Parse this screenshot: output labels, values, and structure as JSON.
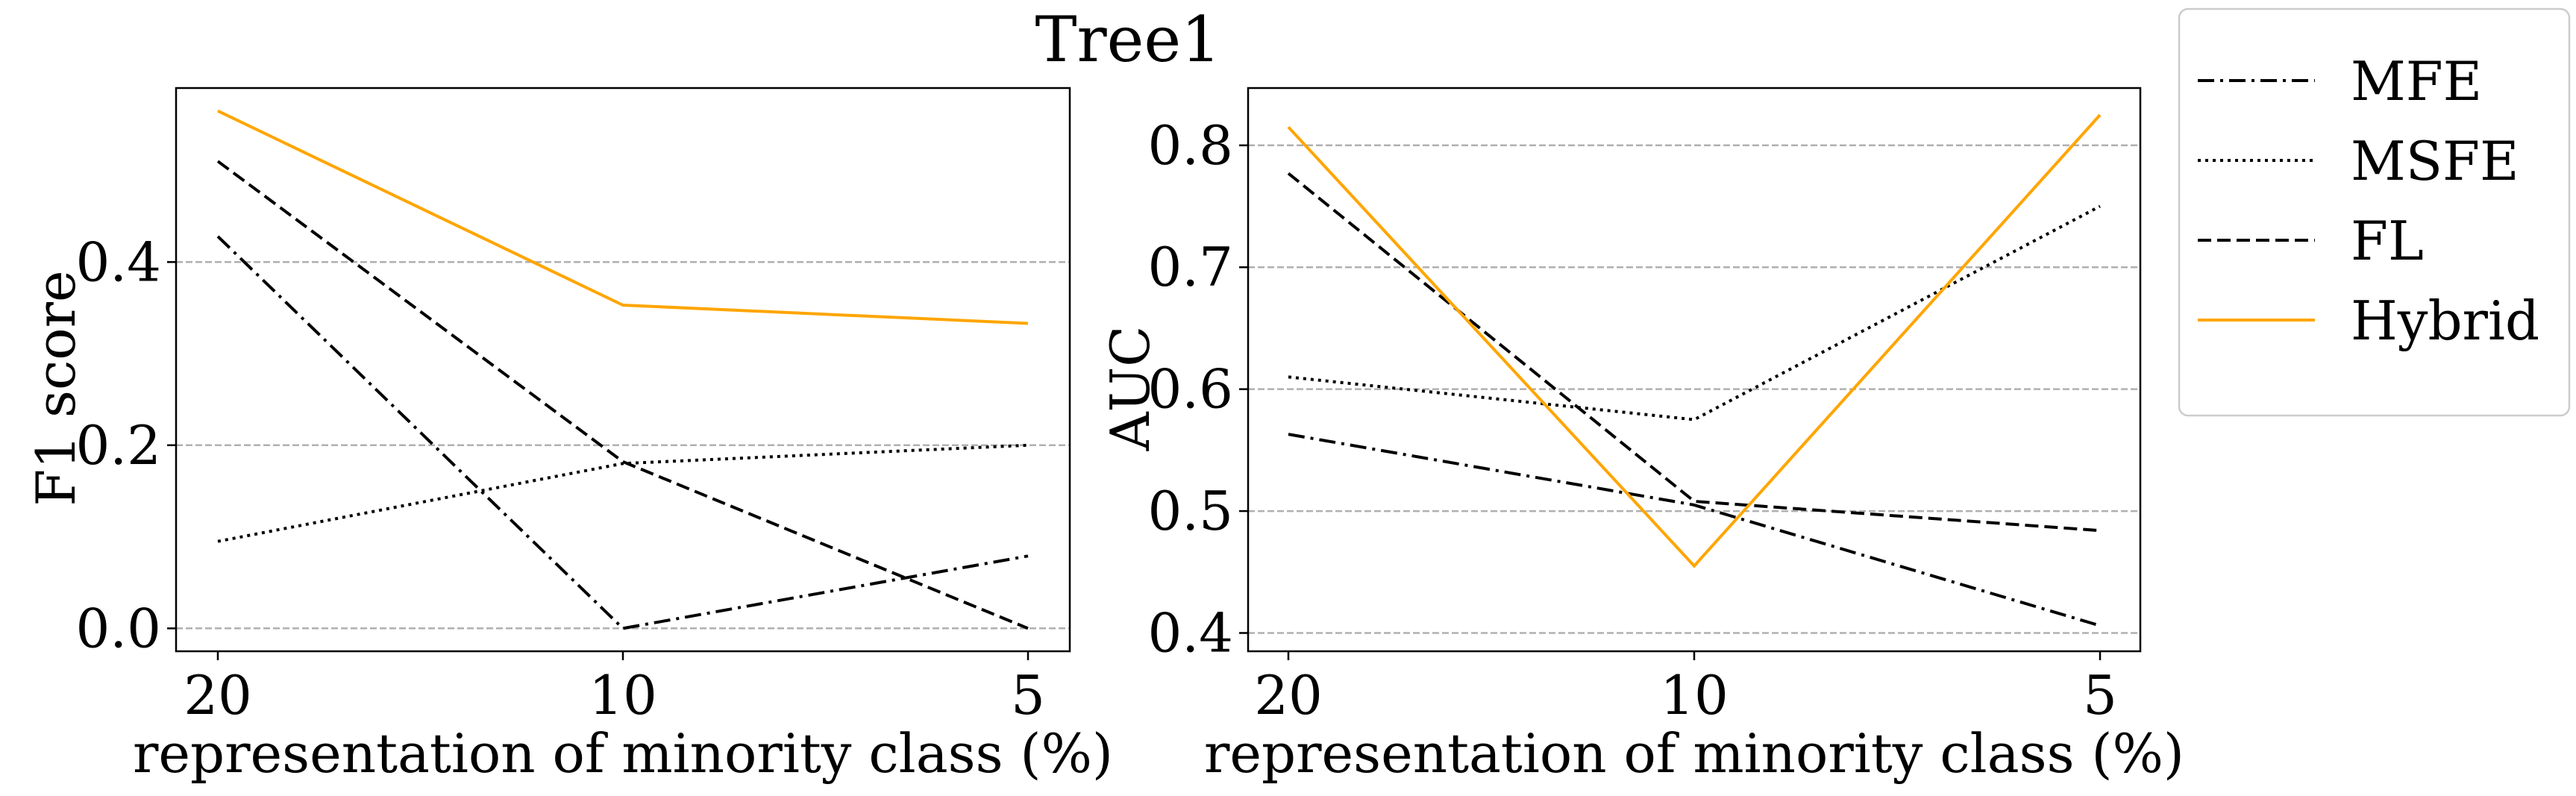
{
  "figure": {
    "suptitle": "Tree1"
  },
  "chart_data": [
    {
      "type": "line",
      "ylabel": "F1 score",
      "xlabel": "representation of minority class (%)",
      "categories": [
        "20",
        "10",
        "5"
      ],
      "yticks": [
        "0.0",
        "0.2",
        "0.4"
      ],
      "ytick_values": [
        0.0,
        0.2,
        0.4
      ],
      "ylim": [
        -0.025,
        0.59
      ],
      "grid": "y",
      "series": [
        {
          "name": "MFE",
          "values": [
            0.428,
            0.0,
            0.079
          ],
          "color": "#000000",
          "style": "dashdot"
        },
        {
          "name": "MSFE",
          "values": [
            0.095,
            0.18,
            0.2
          ],
          "color": "#000000",
          "style": "dotted"
        },
        {
          "name": "FL",
          "values": [
            0.51,
            0.182,
            0.0
          ],
          "color": "#000000",
          "style": "dashed"
        },
        {
          "name": "Hybrid",
          "values": [
            0.565,
            0.353,
            0.333
          ],
          "color": "#ffa500",
          "style": "solid"
        }
      ]
    },
    {
      "type": "line",
      "ylabel": "AUC",
      "xlabel": "representation of minority class (%)",
      "categories": [
        "20",
        "10",
        "5"
      ],
      "yticks": [
        "0.4",
        "0.5",
        "0.6",
        "0.7",
        "0.8"
      ],
      "ytick_values": [
        0.4,
        0.5,
        0.6,
        0.7,
        0.8
      ],
      "ylim": [
        0.385,
        0.847
      ],
      "grid": "y",
      "series": [
        {
          "name": "MFE",
          "values": [
            0.563,
            0.505,
            0.406
          ],
          "color": "#000000",
          "style": "dashdot"
        },
        {
          "name": "MSFE",
          "values": [
            0.61,
            0.575,
            0.75
          ],
          "color": "#000000",
          "style": "dotted"
        },
        {
          "name": "FL",
          "values": [
            0.777,
            0.508,
            0.484
          ],
          "color": "#000000",
          "style": "dashed"
        },
        {
          "name": "Hybrid",
          "values": [
            0.815,
            0.455,
            0.825
          ],
          "color": "#ffa500",
          "style": "solid"
        }
      ]
    }
  ],
  "legend": {
    "placement": "outside-right",
    "entries": [
      {
        "label": "MFE",
        "color": "#000000",
        "style": "dashdot"
      },
      {
        "label": "MSFE",
        "color": "#000000",
        "style": "dotted"
      },
      {
        "label": "FL",
        "color": "#000000",
        "style": "dashed"
      },
      {
        "label": "Hybrid",
        "color": "#ffa500",
        "style": "solid"
      }
    ]
  }
}
